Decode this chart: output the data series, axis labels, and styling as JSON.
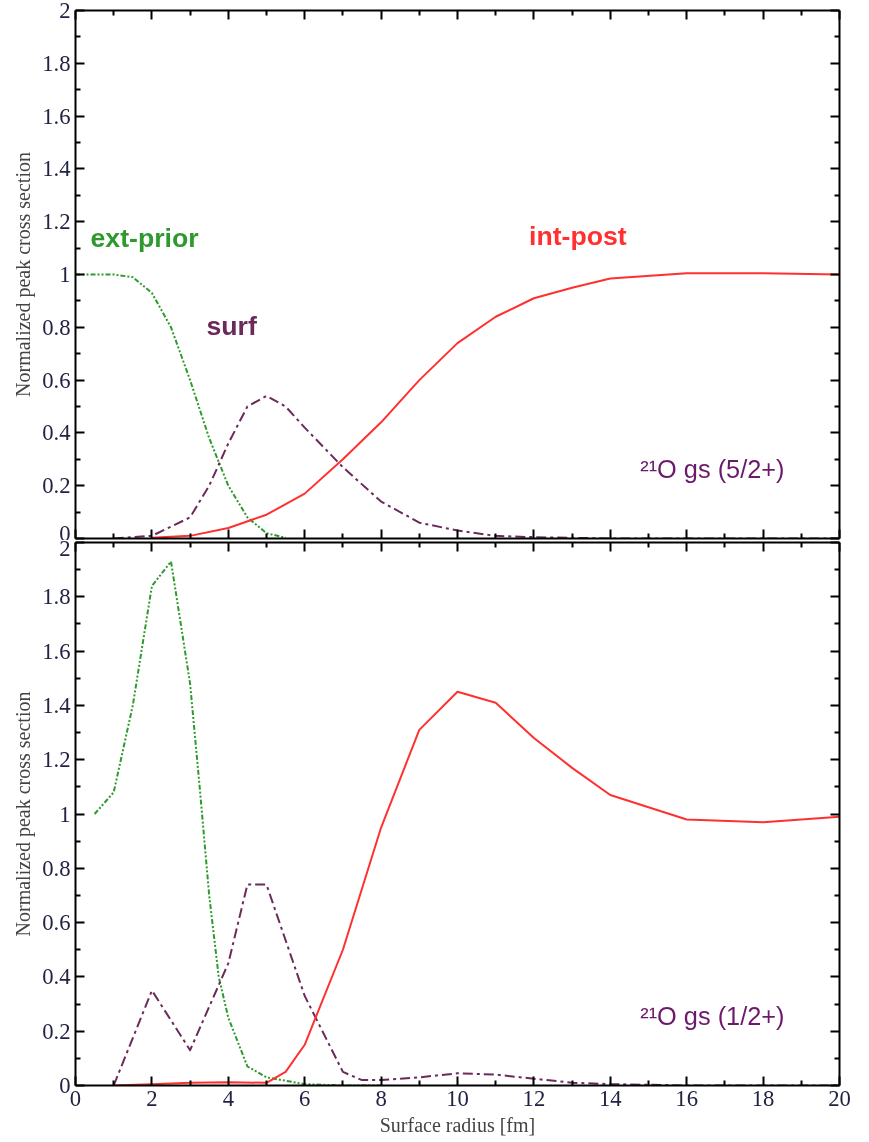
{
  "chart_data": [
    {
      "type": "line",
      "ylabel": "Normalized peak cross section",
      "xlim": [
        0,
        20
      ],
      "ylim": [
        0,
        2
      ],
      "xticks": [
        0,
        2,
        4,
        6,
        8,
        10,
        12,
        14,
        16,
        18,
        20
      ],
      "yticks": [
        0,
        0.2,
        0.4,
        0.6,
        0.8,
        1,
        1.2,
        1.4,
        1.6,
        1.8,
        2
      ],
      "tick_labels": "y",
      "grid": false,
      "annotations": [
        "²¹O gs (5/2+)"
      ],
      "series": [
        {
          "name": "ext-prior",
          "color": "#2e9a2e",
          "line_style": "dotted",
          "x": [
            0,
            1,
            1.5,
            2,
            2.5,
            3,
            3.5,
            4,
            4.5,
            5,
            5.5
          ],
          "values": [
            1,
            1,
            0.99,
            0.93,
            0.8,
            0.6,
            0.38,
            0.2,
            0.08,
            0.02,
            0.003
          ]
        },
        {
          "name": "surf",
          "color": "#6b2a5a",
          "line_style": "dashed",
          "x": [
            1,
            2,
            3,
            3.5,
            4,
            4.5,
            5,
            5.5,
            6,
            7,
            8,
            9,
            10,
            11,
            12,
            14,
            16,
            18,
            20
          ],
          "values": [
            0,
            0.01,
            0.08,
            0.2,
            0.36,
            0.5,
            0.54,
            0.5,
            0.42,
            0.27,
            0.14,
            0.06,
            0.03,
            0.01,
            0.005,
            0,
            0,
            0,
            0
          ]
        },
        {
          "name": "int-post",
          "color": "#ff3030",
          "line_style": "solid",
          "x": [
            2,
            3,
            4,
            5,
            6,
            7,
            8,
            9,
            10,
            11,
            12,
            13,
            14,
            16,
            18,
            20
          ],
          "values": [
            0.003,
            0.01,
            0.04,
            0.09,
            0.17,
            0.3,
            0.44,
            0.6,
            0.74,
            0.84,
            0.91,
            0.95,
            0.985,
            1.005,
            1.005,
            1.0
          ]
        }
      ]
    },
    {
      "type": "line",
      "xlabel": "Surface radius [fm]",
      "ylabel": "Normalized peak cross section",
      "xlim": [
        0,
        20
      ],
      "ylim": [
        0,
        2
      ],
      "xticks": [
        0,
        2,
        4,
        6,
        8,
        10,
        12,
        14,
        16,
        18,
        20
      ],
      "yticks": [
        0,
        0.2,
        0.4,
        0.6,
        0.8,
        1,
        1.2,
        1.4,
        1.6,
        1.8,
        2
      ],
      "grid": false,
      "annotations": [
        "²¹O gs (1/2+)"
      ],
      "series": [
        {
          "color": "#2e9a2e",
          "line_style": "dotted",
          "x": [
            0.5,
            1,
            1.5,
            2,
            2.5,
            3,
            3.25,
            3.5,
            3.75,
            4,
            4.5,
            5,
            6,
            7,
            8
          ],
          "values": [
            1.0,
            1.08,
            1.4,
            1.84,
            1.93,
            1.48,
            1.1,
            0.7,
            0.4,
            0.25,
            0.07,
            0.03,
            0.005,
            0,
            0
          ]
        },
        {
          "color": "#6b2a5a",
          "line_style": "dashed",
          "x": [
            1,
            2,
            3,
            4,
            4.5,
            5,
            6,
            7,
            7.5,
            8,
            9,
            10,
            11,
            12,
            13,
            14,
            16,
            20
          ],
          "values": [
            0,
            0.35,
            0.13,
            0.45,
            0.74,
            0.74,
            0.33,
            0.05,
            0.02,
            0.02,
            0.03,
            0.045,
            0.04,
            0.025,
            0.01,
            0.005,
            0,
            0
          ]
        },
        {
          "color": "#ff3030",
          "line_style": "solid",
          "x": [
            1,
            2,
            3,
            4,
            5,
            5.5,
            6,
            7,
            8,
            9,
            10,
            11,
            12,
            13,
            14,
            16,
            18,
            20
          ],
          "values": [
            0,
            0.005,
            0.01,
            0.012,
            0.01,
            0.05,
            0.15,
            0.5,
            0.95,
            1.31,
            1.45,
            1.41,
            1.28,
            1.17,
            1.07,
            0.98,
            0.97,
            0.99
          ]
        }
      ]
    }
  ]
}
